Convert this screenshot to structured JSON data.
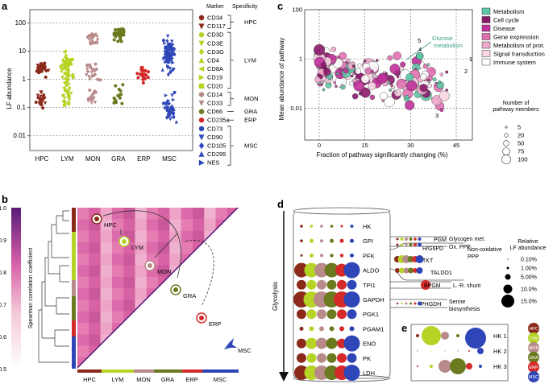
{
  "panel_labels": {
    "a": "a",
    "b": "b",
    "c": "c",
    "d": "d",
    "e": "e"
  },
  "colors": {
    "hpc": "#8b2a1a",
    "lym": "#b5d426",
    "mon": "#b98a8a",
    "gra": "#6b7a1f",
    "erp": "#d42a2a",
    "msc": "#2e46b8",
    "metabolism": "#5fc8aa",
    "cellcycle": "#8a1a6a",
    "disease": "#c0309a",
    "geneexpr": "#e070b0",
    "metprot": "#eeaacc",
    "signal": "#fbd8e4",
    "immune": "#ffffff"
  },
  "panel_a": {
    "ylabel": "LF abundance",
    "yticks": [
      "100",
      "10",
      "1",
      "0.1",
      "0.01"
    ],
    "categories": [
      "HPC",
      "LYM",
      "MON",
      "GRA",
      "ERP",
      "MSC"
    ],
    "marker_header": "Marker",
    "spec_header": "Specificity",
    "markers": [
      {
        "name": "CD34",
        "group": "hpc",
        "shape": "circle"
      },
      {
        "name": "CD117",
        "group": "hpc",
        "shape": "tri-down"
      },
      {
        "name": "CD3D",
        "group": "lym",
        "shape": "circle"
      },
      {
        "name": "CD3E",
        "group": "lym",
        "shape": "tri-down"
      },
      {
        "name": "CD3G",
        "group": "lym",
        "shape": "diamond"
      },
      {
        "name": "CD4",
        "group": "lym",
        "shape": "tri-up"
      },
      {
        "name": "CD8A",
        "group": "lym",
        "shape": "tri-left"
      },
      {
        "name": "CD19",
        "group": "lym",
        "shape": "tri-right"
      },
      {
        "name": "CD20",
        "group": "lym",
        "shape": "square"
      },
      {
        "name": "CD14",
        "group": "mon",
        "shape": "circle"
      },
      {
        "name": "CD33",
        "group": "mon",
        "shape": "tri-down"
      },
      {
        "name": "CD66",
        "group": "gra",
        "shape": "circle"
      },
      {
        "name": "CD235a",
        "group": "erp",
        "shape": "circle"
      },
      {
        "name": "CD73",
        "group": "msc",
        "shape": "circle"
      },
      {
        "name": "CD90",
        "group": "msc",
        "shape": "tri-down"
      },
      {
        "name": "CD105",
        "group": "msc",
        "shape": "diamond"
      },
      {
        "name": "CD295",
        "group": "msc",
        "shape": "tri-up"
      },
      {
        "name": "NES",
        "group": "msc",
        "shape": "tri-right"
      }
    ],
    "specificity": [
      "HPC",
      "LYM",
      "MON",
      "GRA",
      "ERP",
      "MSC"
    ]
  },
  "panel_b": {
    "colorbar_label": "Spearman correlation coefficient",
    "colorbar_ticks": [
      "1.0",
      "0.9",
      "0.8",
      "0.7",
      "0.6",
      "0.5"
    ],
    "xcats": [
      "HPC",
      "LYM",
      "MON",
      "GRA",
      "ERP",
      "MSC"
    ],
    "diag_labels": [
      "HPC",
      "LYM",
      "MON",
      "GRA",
      "ERP",
      "MSC"
    ]
  },
  "panel_c": {
    "ylabel": "Mean abundance of pathway",
    "xlabel": "Fraction of pathway significantly changing (%)",
    "yticks": [
      "100",
      "1",
      "0.01"
    ],
    "xticks": [
      "0",
      "15",
      "30",
      "45"
    ],
    "legend": [
      "Metabolism",
      "Cell cycle",
      "Disease",
      "Gene expression",
      "Metabolism of prot.",
      "Signal transduction",
      "Immune system"
    ],
    "size_title": "Number of pathway members",
    "size_values": [
      "5",
      "20",
      "50",
      "75",
      "100"
    ],
    "annotation": "Glucose metabolism",
    "numbers": [
      "1",
      "2",
      "3",
      "4",
      "5",
      "6"
    ]
  },
  "panel_d": {
    "glycolysis_label": "Glycolysis",
    "enzymes": [
      "HK",
      "GPI",
      "PFK",
      "ALDO",
      "TPI1",
      "GAPDH",
      "PGK1",
      "PGAM1",
      "ENO",
      "PK",
      "LDH"
    ],
    "side_enzymes": [
      "PGM",
      "H/G6PD",
      "TKT",
      "TALDO1",
      "BPGM",
      "PHGDH"
    ],
    "pathways": [
      "Glycogen met.",
      "Ox. PPP",
      "Non-oxidative PPP",
      "L.-R. shunt",
      "Serine biosynthesis"
    ],
    "rel_title": "Relative LF abundance",
    "rel_values": [
      "0.10%",
      "1.00%",
      "5.00%",
      "10.0%",
      "15.0%"
    ]
  },
  "panel_e": {
    "rows": [
      "HK 1",
      "HK 2",
      "HK 3"
    ],
    "legend": [
      "HPC",
      "LYM",
      "MON",
      "GRA",
      "ERP",
      "MSC"
    ]
  }
}
